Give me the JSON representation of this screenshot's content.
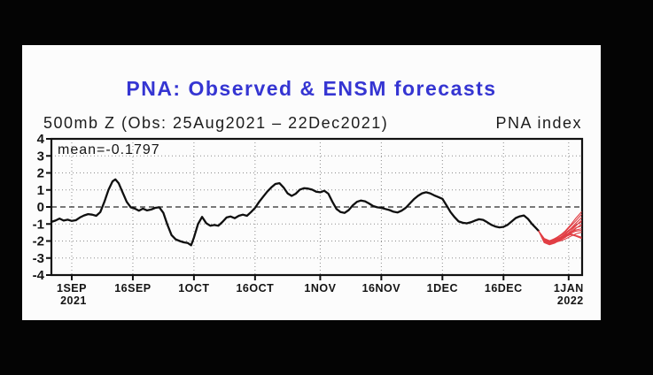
{
  "window": {
    "background_color": "#040404",
    "panel_background_color": "#fcfcfc"
  },
  "chart_data": {
    "type": "line",
    "title": "PNA: Observed & ENSM forecasts",
    "title_color": "#3535d2",
    "subtitle_left": "500mb Z (Obs: 25Aug2021 – 22Dec2021)",
    "subtitle_right": "PNA index",
    "annotation": "mean=-0.1797",
    "observed_color": "#0f0f0f",
    "forecast_color": "#e13e44",
    "grid_color": "#8c8c8c",
    "zero_line_color": "#2b2b2b",
    "ylim": [
      -4,
      4
    ],
    "yticks": [
      4,
      3,
      2,
      1,
      0,
      -1,
      -2,
      -3,
      -4
    ],
    "xlim_days": [
      0,
      130.3
    ],
    "xticks": [
      {
        "label": "1SEP",
        "sub": "2021",
        "day": 5
      },
      {
        "label": "16SEP",
        "sub": "",
        "day": 20
      },
      {
        "label": "1OCT",
        "sub": "",
        "day": 35
      },
      {
        "label": "16OCT",
        "sub": "",
        "day": 50
      },
      {
        "label": "1NOV",
        "sub": "",
        "day": 66
      },
      {
        "label": "16NOV",
        "sub": "",
        "day": 81
      },
      {
        "label": "1DEC",
        "sub": "",
        "day": 96
      },
      {
        "label": "16DEC",
        "sub": "",
        "day": 111
      },
      {
        "label": "1JAN",
        "sub": "2022",
        "day": 127
      }
    ],
    "observed": [
      [
        0,
        -0.88
      ],
      [
        1,
        -0.8
      ],
      [
        2,
        -0.68
      ],
      [
        3,
        -0.8
      ],
      [
        4,
        -0.75
      ],
      [
        5,
        -0.82
      ],
      [
        6,
        -0.78
      ],
      [
        7,
        -0.62
      ],
      [
        8,
        -0.5
      ],
      [
        9,
        -0.42
      ],
      [
        10,
        -0.45
      ],
      [
        11,
        -0.52
      ],
      [
        12,
        -0.3
      ],
      [
        13,
        0.3
      ],
      [
        14,
        1.0
      ],
      [
        15,
        1.5
      ],
      [
        15.7,
        1.62
      ],
      [
        16.5,
        1.4
      ],
      [
        17.5,
        0.85
      ],
      [
        18.5,
        0.3
      ],
      [
        19.5,
        -0.02
      ],
      [
        20.5,
        -0.1
      ],
      [
        21.5,
        -0.22
      ],
      [
        22.5,
        -0.1
      ],
      [
        23.5,
        -0.2
      ],
      [
        24.5,
        -0.15
      ],
      [
        25.5,
        -0.05
      ],
      [
        26.5,
        -0.02
      ],
      [
        27.5,
        -0.35
      ],
      [
        28.5,
        -1.05
      ],
      [
        29.5,
        -1.65
      ],
      [
        30.5,
        -1.9
      ],
      [
        31.5,
        -2.0
      ],
      [
        32.5,
        -2.08
      ],
      [
        33.5,
        -2.12
      ],
      [
        34.3,
        -2.25
      ],
      [
        35,
        -1.8
      ],
      [
        36,
        -1.0
      ],
      [
        37,
        -0.58
      ],
      [
        38,
        -0.95
      ],
      [
        39,
        -1.1
      ],
      [
        40,
        -1.06
      ],
      [
        41,
        -1.1
      ],
      [
        42,
        -0.88
      ],
      [
        43,
        -0.62
      ],
      [
        44,
        -0.56
      ],
      [
        45,
        -0.66
      ],
      [
        46,
        -0.52
      ],
      [
        47,
        -0.45
      ],
      [
        48,
        -0.52
      ],
      [
        49,
        -0.3
      ],
      [
        50,
        -0.05
      ],
      [
        51,
        0.3
      ],
      [
        52,
        0.6
      ],
      [
        53,
        0.9
      ],
      [
        54,
        1.15
      ],
      [
        55,
        1.35
      ],
      [
        56,
        1.4
      ],
      [
        57,
        1.15
      ],
      [
        58,
        0.8
      ],
      [
        59,
        0.65
      ],
      [
        60,
        0.78
      ],
      [
        61,
        1.02
      ],
      [
        62,
        1.1
      ],
      [
        63,
        1.08
      ],
      [
        64,
        1.02
      ],
      [
        65,
        0.9
      ],
      [
        66,
        0.86
      ],
      [
        67,
        0.95
      ],
      [
        68,
        0.78
      ],
      [
        69,
        0.3
      ],
      [
        70,
        -0.12
      ],
      [
        71,
        -0.3
      ],
      [
        72,
        -0.35
      ],
      [
        73,
        -0.18
      ],
      [
        74,
        0.1
      ],
      [
        75,
        0.3
      ],
      [
        76,
        0.38
      ],
      [
        77,
        0.33
      ],
      [
        78,
        0.2
      ],
      [
        79,
        0.05
      ],
      [
        80,
        -0.02
      ],
      [
        81,
        -0.05
      ],
      [
        82,
        -0.12
      ],
      [
        83,
        -0.18
      ],
      [
        84,
        -0.28
      ],
      [
        85,
        -0.32
      ],
      [
        86,
        -0.22
      ],
      [
        87,
        -0.05
      ],
      [
        88,
        0.2
      ],
      [
        89,
        0.45
      ],
      [
        90,
        0.65
      ],
      [
        91,
        0.8
      ],
      [
        92,
        0.86
      ],
      [
        93,
        0.8
      ],
      [
        94,
        0.68
      ],
      [
        95,
        0.58
      ],
      [
        96,
        0.48
      ],
      [
        97,
        0.1
      ],
      [
        98,
        -0.3
      ],
      [
        99,
        -0.6
      ],
      [
        100,
        -0.85
      ],
      [
        101,
        -0.93
      ],
      [
        102,
        -0.96
      ],
      [
        103,
        -0.9
      ],
      [
        104,
        -0.8
      ],
      [
        105,
        -0.72
      ],
      [
        106,
        -0.76
      ],
      [
        107,
        -0.9
      ],
      [
        108,
        -1.05
      ],
      [
        109,
        -1.15
      ],
      [
        110,
        -1.2
      ],
      [
        111,
        -1.17
      ],
      [
        112,
        -1.05
      ],
      [
        113,
        -0.85
      ],
      [
        114,
        -0.65
      ],
      [
        115,
        -0.55
      ],
      [
        116,
        -0.5
      ],
      [
        117,
        -0.7
      ],
      [
        118,
        -1.0
      ],
      [
        119,
        -1.25
      ],
      [
        119.6,
        -1.4
      ]
    ],
    "forecast_days": [
      119.6,
      121,
      122.3,
      123.6,
      124.9,
      126.2,
      127.5,
      128.8,
      130.2
    ],
    "forecast_members": [
      [
        -1.4,
        -1.9,
        -2.02,
        -1.95,
        -1.8,
        -1.68,
        -1.42,
        -1.1,
        -0.78
      ],
      [
        -1.4,
        -2.0,
        -2.1,
        -2.02,
        -1.92,
        -1.75,
        -1.55,
        -1.25,
        -1.02
      ],
      [
        -1.4,
        -1.85,
        -1.98,
        -1.88,
        -1.65,
        -1.45,
        -1.12,
        -0.8,
        -0.42
      ],
      [
        -1.4,
        -2.05,
        -2.18,
        -2.08,
        -2.0,
        -1.88,
        -1.72,
        -1.58,
        -1.48
      ],
      [
        -1.4,
        -1.95,
        -2.05,
        -1.92,
        -1.78,
        -1.62,
        -1.48,
        -1.35,
        -1.28
      ],
      [
        -1.4,
        -2.0,
        -2.08,
        -1.9,
        -1.7,
        -1.52,
        -1.28,
        -0.95,
        -0.62
      ],
      [
        -1.4,
        -1.88,
        -2.0,
        -2.05,
        -1.88,
        -1.7,
        -1.55,
        -1.42,
        -1.38
      ],
      [
        -1.4,
        -2.1,
        -2.22,
        -2.12,
        -1.95,
        -1.78,
        -1.5,
        -1.22,
        -1.12
      ],
      [
        -1.4,
        -1.92,
        -2.0,
        -1.85,
        -1.68,
        -1.4,
        -1.05,
        -0.65,
        -0.28
      ],
      [
        -1.4,
        -2.02,
        -2.12,
        -2.0,
        -1.85,
        -1.7,
        -1.58,
        -1.68,
        -1.78
      ],
      [
        -1.4,
        -1.95,
        -2.05,
        -1.98,
        -1.78,
        -1.58,
        -1.32,
        -1.05,
        -0.88
      ],
      [
        -1.4,
        -2.05,
        -2.15,
        -2.05,
        -1.9,
        -1.75,
        -1.62,
        -1.72,
        -1.85
      ]
    ]
  }
}
